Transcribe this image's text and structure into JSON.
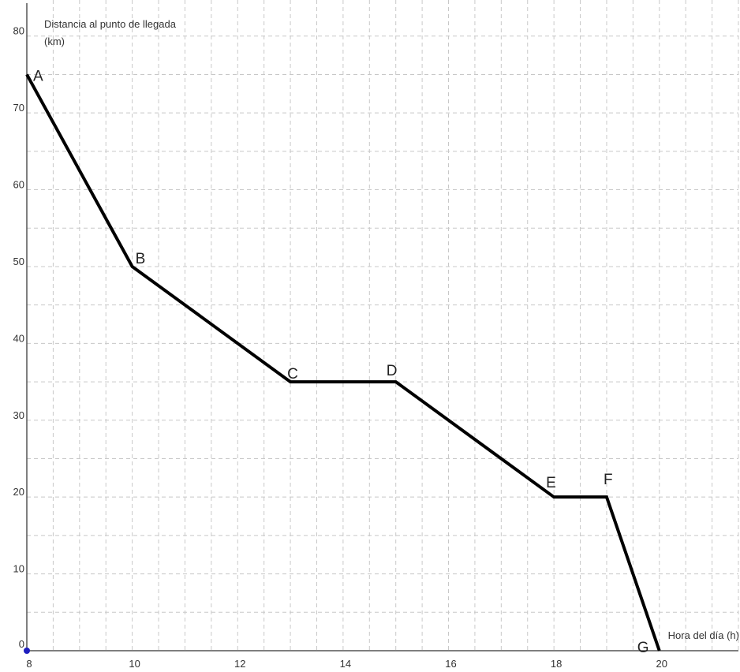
{
  "chart_data": {
    "type": "line",
    "title": "",
    "ylabel_line1": "Distancia  al punto de llegada",
    "ylabel_line2": "(km)",
    "xlabel": "Hora del día (h)",
    "xlim": [
      8,
      21.5
    ],
    "ylim": [
      0,
      81
    ],
    "grid": true,
    "x_ticks": [
      8,
      10,
      12,
      14,
      16,
      18,
      20
    ],
    "y_ticks": [
      0,
      10,
      20,
      30,
      40,
      50,
      60,
      70,
      80
    ],
    "series": [
      {
        "points": [
          {
            "label": "A",
            "x": 8,
            "y": 75
          },
          {
            "label": "B",
            "x": 10,
            "y": 50
          },
          {
            "label": "C",
            "x": 13,
            "y": 35
          },
          {
            "label": "D",
            "x": 15,
            "y": 35
          },
          {
            "label": "E",
            "x": 18,
            "y": 20
          },
          {
            "label": "F",
            "x": 19,
            "y": 20
          },
          {
            "label": "G",
            "x": 20,
            "y": 0
          }
        ]
      }
    ],
    "colors": {
      "line": "#000000",
      "origin_dot": "#1f1fbf",
      "grid": "#c8c8c8"
    }
  }
}
